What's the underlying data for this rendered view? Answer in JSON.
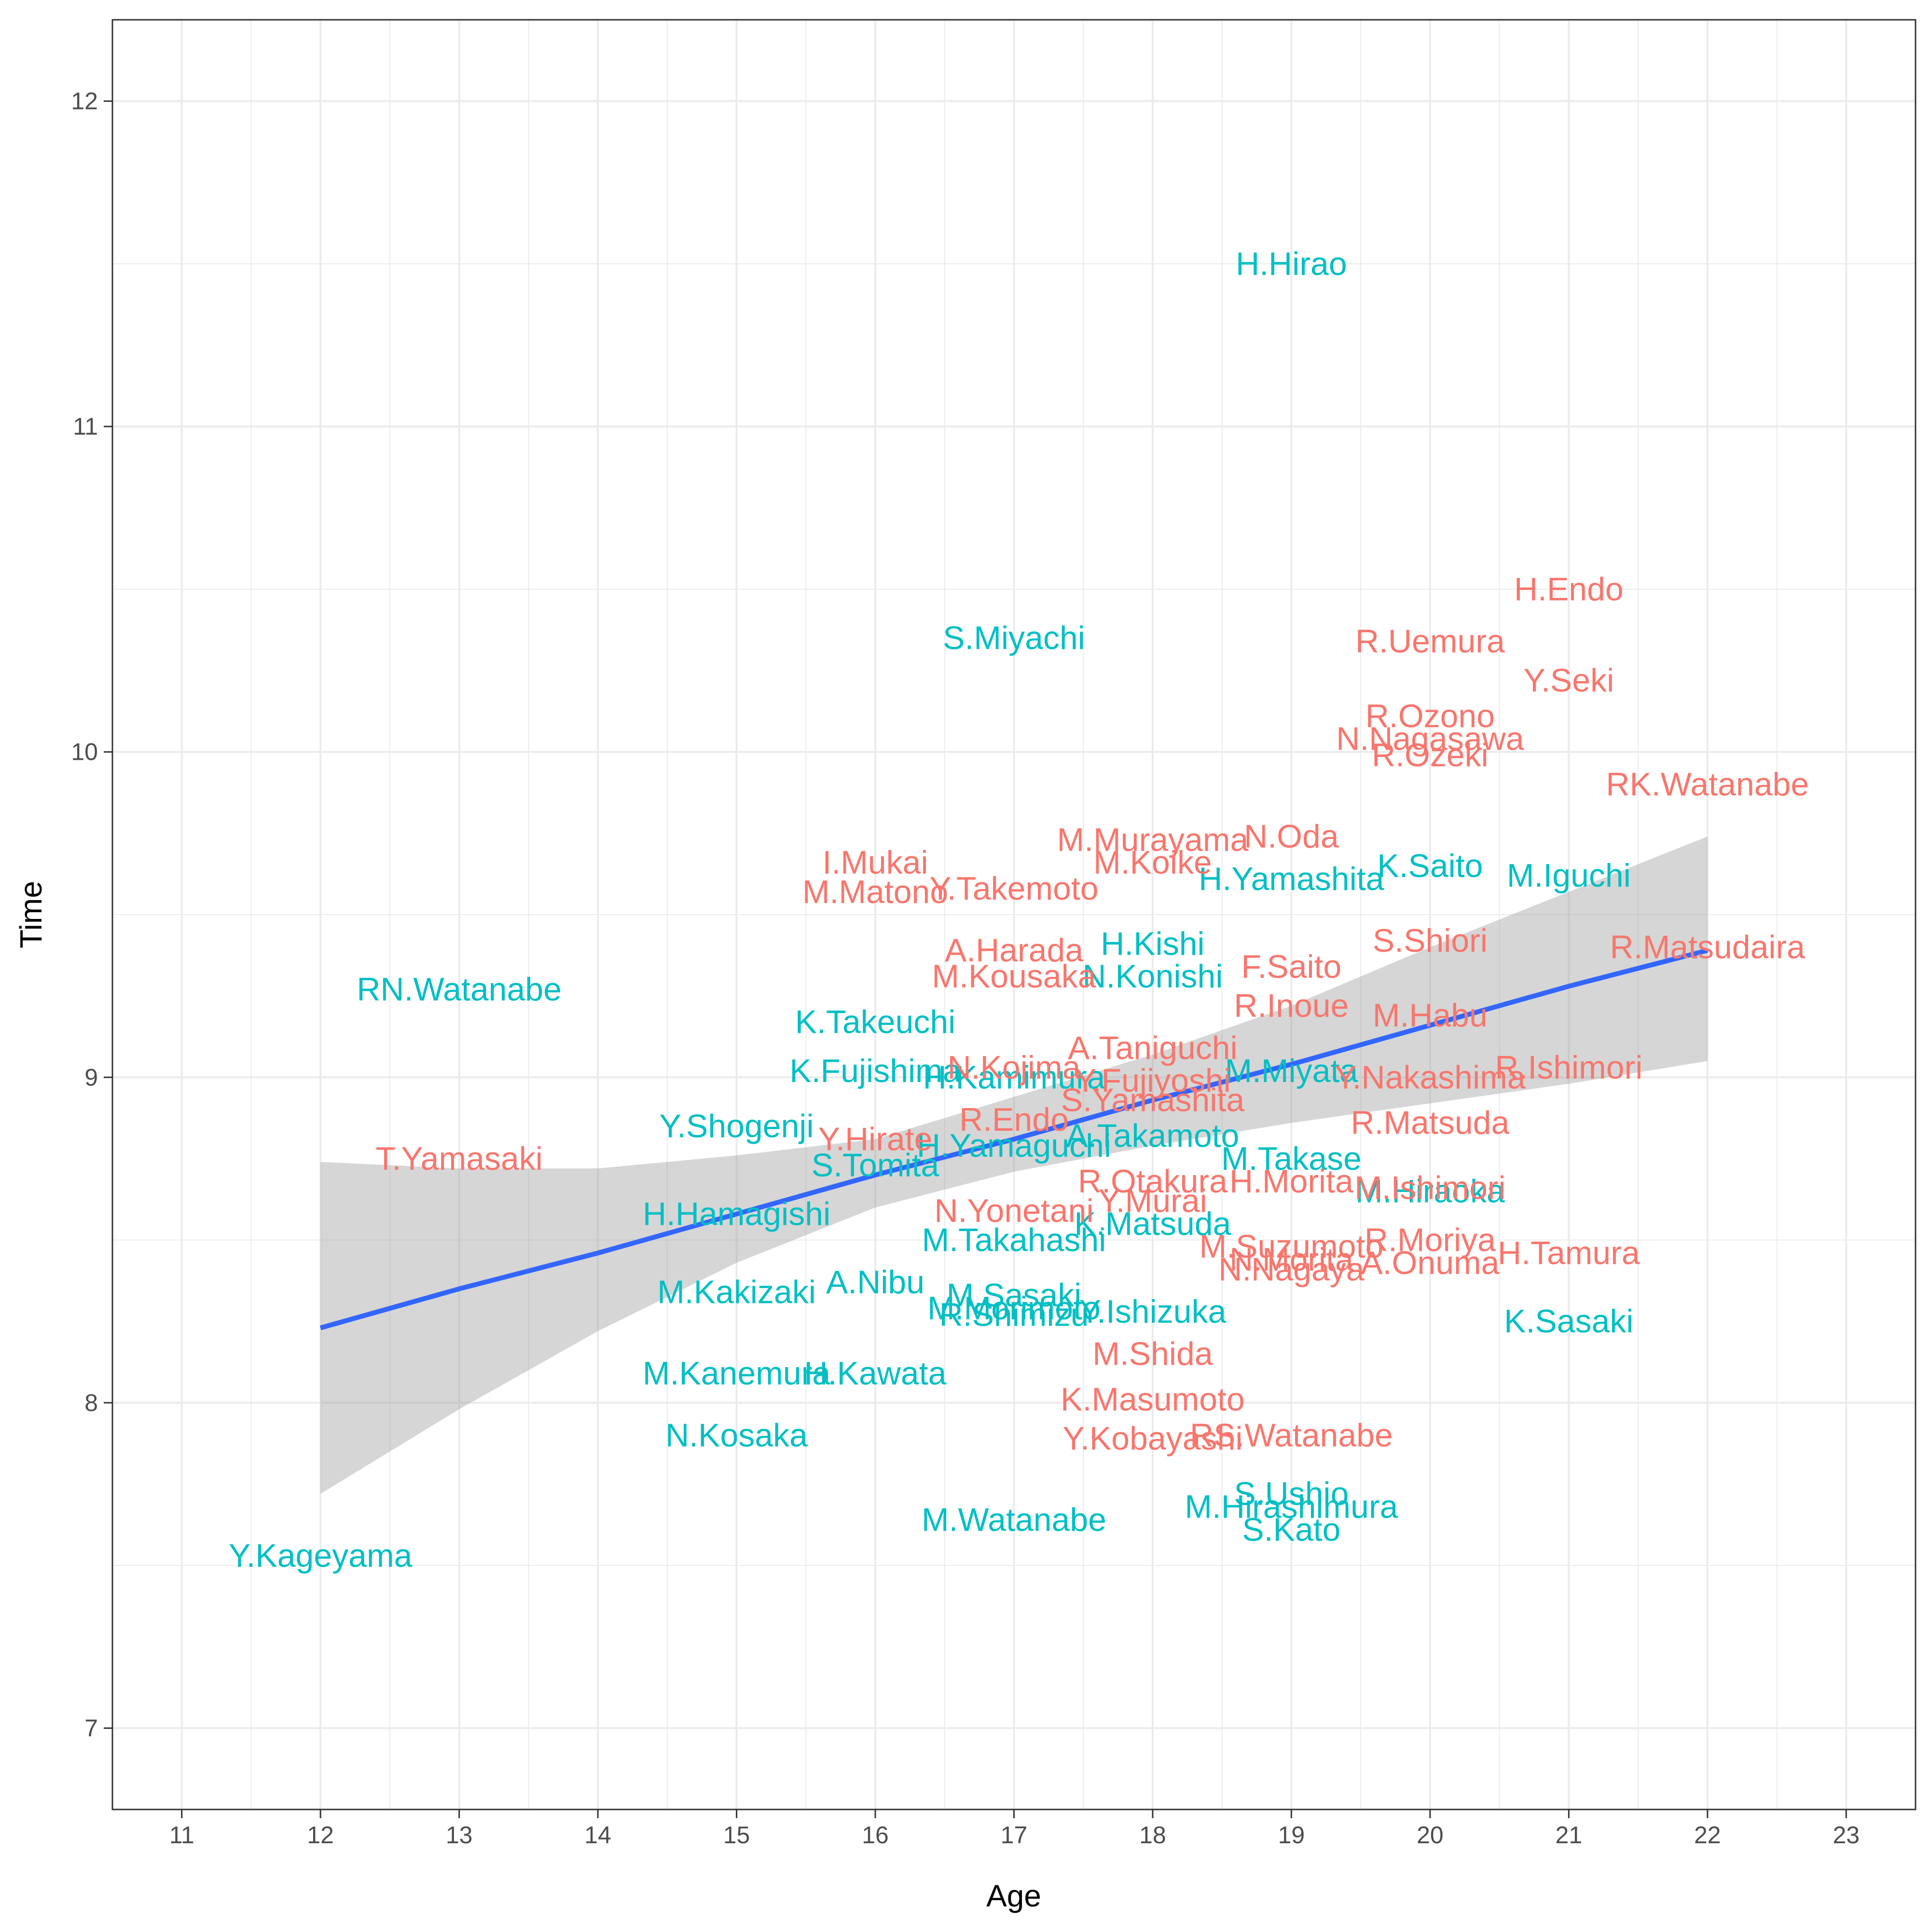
{
  "chart_data": {
    "type": "scatter",
    "title": "",
    "xlabel": "Age",
    "ylabel": "Time",
    "xlim": [
      10.5,
      23.5
    ],
    "ylim": [
      6.75,
      12.25
    ],
    "x_ticks": [
      "11",
      "12",
      "13",
      "14",
      "15",
      "16",
      "17",
      "18",
      "19",
      "20",
      "21",
      "22",
      "23"
    ],
    "y_ticks": [
      "7",
      "8",
      "9",
      "10",
      "11",
      "12"
    ],
    "grid": true,
    "legend": "none",
    "colors": {
      "red": "#F8766D",
      "cyan": "#00BFC4",
      "fit": "#3366FF",
      "band": "#cccccc"
    },
    "regression": {
      "x": [
        12,
        13,
        14,
        15,
        16,
        17,
        18,
        19,
        20,
        21,
        22
      ],
      "fit": [
        8.23,
        8.35,
        8.46,
        8.58,
        8.7,
        8.81,
        8.93,
        9.04,
        9.16,
        9.28,
        9.39
      ],
      "lower": [
        7.72,
        7.98,
        8.22,
        8.43,
        8.6,
        8.71,
        8.79,
        8.86,
        8.92,
        8.98,
        9.05
      ],
      "upper": [
        8.74,
        8.72,
        8.72,
        8.76,
        8.81,
        8.94,
        9.07,
        9.22,
        9.4,
        9.57,
        9.74
      ]
    },
    "points": [
      {
        "label": "H.Hirao",
        "x": 19,
        "y": 11.5,
        "group": "cyan"
      },
      {
        "label": "S.Miyachi",
        "x": 17,
        "y": 10.35,
        "group": "cyan"
      },
      {
        "label": "RN.Watanabe",
        "x": 13,
        "y": 9.27,
        "group": "cyan"
      },
      {
        "label": "K.Takeuchi",
        "x": 16,
        "y": 9.17,
        "group": "cyan"
      },
      {
        "label": "K.Fujishima",
        "x": 16,
        "y": 9.02,
        "group": "cyan"
      },
      {
        "label": "Y.Shogenji",
        "x": 15,
        "y": 8.85,
        "group": "cyan"
      },
      {
        "label": "S.Tomita",
        "x": 16,
        "y": 8.73,
        "group": "cyan"
      },
      {
        "label": "H.Hamagishi",
        "x": 15,
        "y": 8.58,
        "group": "cyan"
      },
      {
        "label": "M.Kakizaki",
        "x": 15,
        "y": 8.34,
        "group": "cyan"
      },
      {
        "label": "A.Nibu",
        "x": 16,
        "y": 8.37,
        "group": "cyan"
      },
      {
        "label": "M.Kanemura",
        "x": 15,
        "y": 8.09,
        "group": "cyan"
      },
      {
        "label": "H.Kawata",
        "x": 16,
        "y": 8.09,
        "group": "cyan"
      },
      {
        "label": "N.Kosaka",
        "x": 15,
        "y": 7.9,
        "group": "cyan"
      },
      {
        "label": "Y.Kageyama",
        "x": 12,
        "y": 7.53,
        "group": "cyan"
      },
      {
        "label": "M.Watanabe",
        "x": 17,
        "y": 7.64,
        "group": "cyan"
      },
      {
        "label": "H.Kamimura",
        "x": 17,
        "y": 9.0,
        "group": "cyan"
      },
      {
        "label": "H.Yamaguchi",
        "x": 17,
        "y": 8.79,
        "group": "cyan"
      },
      {
        "label": "M.Takahashi",
        "x": 17,
        "y": 8.5,
        "group": "cyan"
      },
      {
        "label": "M.Sasaki",
        "x": 17,
        "y": 8.33,
        "group": "cyan"
      },
      {
        "label": "M.Morimoto",
        "x": 17,
        "y": 8.29,
        "group": "cyan"
      },
      {
        "label": "R.Shimizu",
        "x": 17,
        "y": 8.27,
        "group": "cyan"
      },
      {
        "label": "H.Kishi",
        "x": 18,
        "y": 9.41,
        "group": "cyan"
      },
      {
        "label": "N.Konishi",
        "x": 18,
        "y": 9.31,
        "group": "cyan"
      },
      {
        "label": "A.Takamoto",
        "x": 18,
        "y": 8.82,
        "group": "cyan"
      },
      {
        "label": "K.Matsuda",
        "x": 18,
        "y": 8.55,
        "group": "cyan"
      },
      {
        "label": "Y.Ishizuka",
        "x": 18,
        "y": 8.28,
        "group": "cyan"
      },
      {
        "label": "M.Miyata",
        "x": 19,
        "y": 9.02,
        "group": "cyan"
      },
      {
        "label": "H.Yamashita",
        "x": 19,
        "y": 9.61,
        "group": "cyan"
      },
      {
        "label": "M.Takase",
        "x": 19,
        "y": 8.75,
        "group": "cyan"
      },
      {
        "label": "M.Hirashimura",
        "x": 19,
        "y": 7.68,
        "group": "cyan"
      },
      {
        "label": "S.Ushio",
        "x": 19,
        "y": 7.72,
        "group": "cyan"
      },
      {
        "label": "S.Kato",
        "x": 19,
        "y": 7.61,
        "group": "cyan"
      },
      {
        "label": "K.Saito",
        "x": 20,
        "y": 9.65,
        "group": "cyan"
      },
      {
        "label": "M.Hiraoka",
        "x": 20,
        "y": 8.65,
        "group": "cyan"
      },
      {
        "label": "M.Iguchi",
        "x": 21,
        "y": 9.62,
        "group": "cyan"
      },
      {
        "label": "K.Sasaki",
        "x": 21,
        "y": 8.25,
        "group": "cyan"
      },
      {
        "label": "H.Endo",
        "x": 21,
        "y": 10.5,
        "group": "red"
      },
      {
        "label": "R.Uemura",
        "x": 20,
        "y": 10.34,
        "group": "red"
      },
      {
        "label": "Y.Seki",
        "x": 21,
        "y": 10.22,
        "group": "red"
      },
      {
        "label": "R.Ozono",
        "x": 20,
        "y": 10.11,
        "group": "red"
      },
      {
        "label": "N.Nagasawa",
        "x": 20,
        "y": 10.04,
        "group": "red"
      },
      {
        "label": "R.Ozeki",
        "x": 20,
        "y": 9.99,
        "group": "red"
      },
      {
        "label": "RK.Watanabe",
        "x": 22,
        "y": 9.9,
        "group": "red"
      },
      {
        "label": "N.Oda",
        "x": 19,
        "y": 9.74,
        "group": "red"
      },
      {
        "label": "M.Murayama",
        "x": 18,
        "y": 9.73,
        "group": "red"
      },
      {
        "label": "M.Koike",
        "x": 18,
        "y": 9.66,
        "group": "red"
      },
      {
        "label": "I.Mukai",
        "x": 16,
        "y": 9.66,
        "group": "red"
      },
      {
        "label": "Y.Takemoto",
        "x": 17,
        "y": 9.58,
        "group": "red"
      },
      {
        "label": "M.Matono",
        "x": 16,
        "y": 9.57,
        "group": "red"
      },
      {
        "label": "S.Shiori",
        "x": 20,
        "y": 9.42,
        "group": "red"
      },
      {
        "label": "R.Matsudaira",
        "x": 22,
        "y": 9.4,
        "group": "red"
      },
      {
        "label": "A.Harada",
        "x": 17,
        "y": 9.39,
        "group": "red"
      },
      {
        "label": "F.Saito",
        "x": 19,
        "y": 9.34,
        "group": "red"
      },
      {
        "label": "M.Kousaka",
        "x": 17,
        "y": 9.31,
        "group": "red"
      },
      {
        "label": "R.Inoue",
        "x": 19,
        "y": 9.22,
        "group": "red"
      },
      {
        "label": "M.Habu",
        "x": 20,
        "y": 9.19,
        "group": "red"
      },
      {
        "label": "A.Taniguchi",
        "x": 18,
        "y": 9.09,
        "group": "red"
      },
      {
        "label": "N.Kojima",
        "x": 17,
        "y": 9.03,
        "group": "red"
      },
      {
        "label": "R.Ishimori",
        "x": 21,
        "y": 9.03,
        "group": "red"
      },
      {
        "label": "Y.Fujiyoshi",
        "x": 18,
        "y": 8.99,
        "group": "red"
      },
      {
        "label": "Y.Nakashima",
        "x": 20,
        "y": 9.0,
        "group": "red"
      },
      {
        "label": "S.Yamashita",
        "x": 18,
        "y": 8.93,
        "group": "red"
      },
      {
        "label": "R.Matsuda",
        "x": 20,
        "y": 8.86,
        "group": "red"
      },
      {
        "label": "R.Endo",
        "x": 17,
        "y": 8.87,
        "group": "red"
      },
      {
        "label": "Y.Hirate",
        "x": 16,
        "y": 8.81,
        "group": "red"
      },
      {
        "label": "T.Yamasaki",
        "x": 13,
        "y": 8.75,
        "group": "red"
      },
      {
        "label": "R.Otakura",
        "x": 18,
        "y": 8.68,
        "group": "red"
      },
      {
        "label": "H.Morita",
        "x": 19,
        "y": 8.68,
        "group": "red"
      },
      {
        "label": "M.Ishimori",
        "x": 20,
        "y": 8.66,
        "group": "red"
      },
      {
        "label": "Y.Murai",
        "x": 18,
        "y": 8.62,
        "group": "red"
      },
      {
        "label": "N.Yonetani",
        "x": 17,
        "y": 8.59,
        "group": "red"
      },
      {
        "label": "R.Moriya",
        "x": 20,
        "y": 8.5,
        "group": "red"
      },
      {
        "label": "M.Suzumoto",
        "x": 19,
        "y": 8.48,
        "group": "red"
      },
      {
        "label": "H.Tamura",
        "x": 21,
        "y": 8.46,
        "group": "red"
      },
      {
        "label": "A.Onuma",
        "x": 20,
        "y": 8.43,
        "group": "red"
      },
      {
        "label": "N.Morita",
        "x": 19,
        "y": 8.44,
        "group": "red"
      },
      {
        "label": "N.Nagaya",
        "x": 19,
        "y": 8.41,
        "group": "red"
      },
      {
        "label": "M.Shida",
        "x": 18,
        "y": 8.15,
        "group": "red"
      },
      {
        "label": "K.Masumoto",
        "x": 18,
        "y": 8.01,
        "group": "red"
      },
      {
        "label": "RS.Watanabe",
        "x": 19,
        "y": 7.9,
        "group": "red"
      },
      {
        "label": "Y.Kobayashi",
        "x": 18,
        "y": 7.89,
        "group": "red"
      }
    ]
  }
}
